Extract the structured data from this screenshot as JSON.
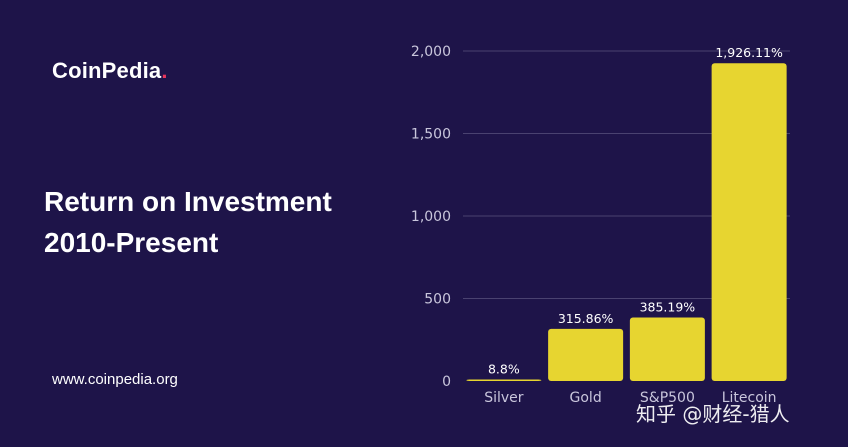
{
  "brand": {
    "name": "CoinPedia",
    "dot": ".",
    "accent": "#e8365d"
  },
  "headline": {
    "line1": "Return on Investment",
    "line2": "2010-Present"
  },
  "website": "www.coinpedia.org",
  "watermark": "知乎 @财经-猎人",
  "colors": {
    "background": "#1e1449",
    "bar": "#e7d530",
    "grid": "#4a4270",
    "text": "#c9c6dc"
  },
  "chart_data": {
    "type": "bar",
    "categories": [
      "Silver",
      "Gold",
      "S&P500",
      "Litecoin"
    ],
    "values": [
      8.8,
      315.86,
      385.19,
      1926.11
    ],
    "data_labels": [
      "8.8%",
      "315.86%",
      "385.19%",
      "1,926.11%"
    ],
    "ylim": [
      0,
      2000
    ],
    "yticks": [
      0,
      500,
      1000,
      1500,
      2000
    ],
    "ytick_labels": [
      "0",
      "500",
      "1,000",
      "1,500",
      "2,000"
    ],
    "grid": true,
    "xlabel": "",
    "ylabel": "",
    "title": ""
  }
}
